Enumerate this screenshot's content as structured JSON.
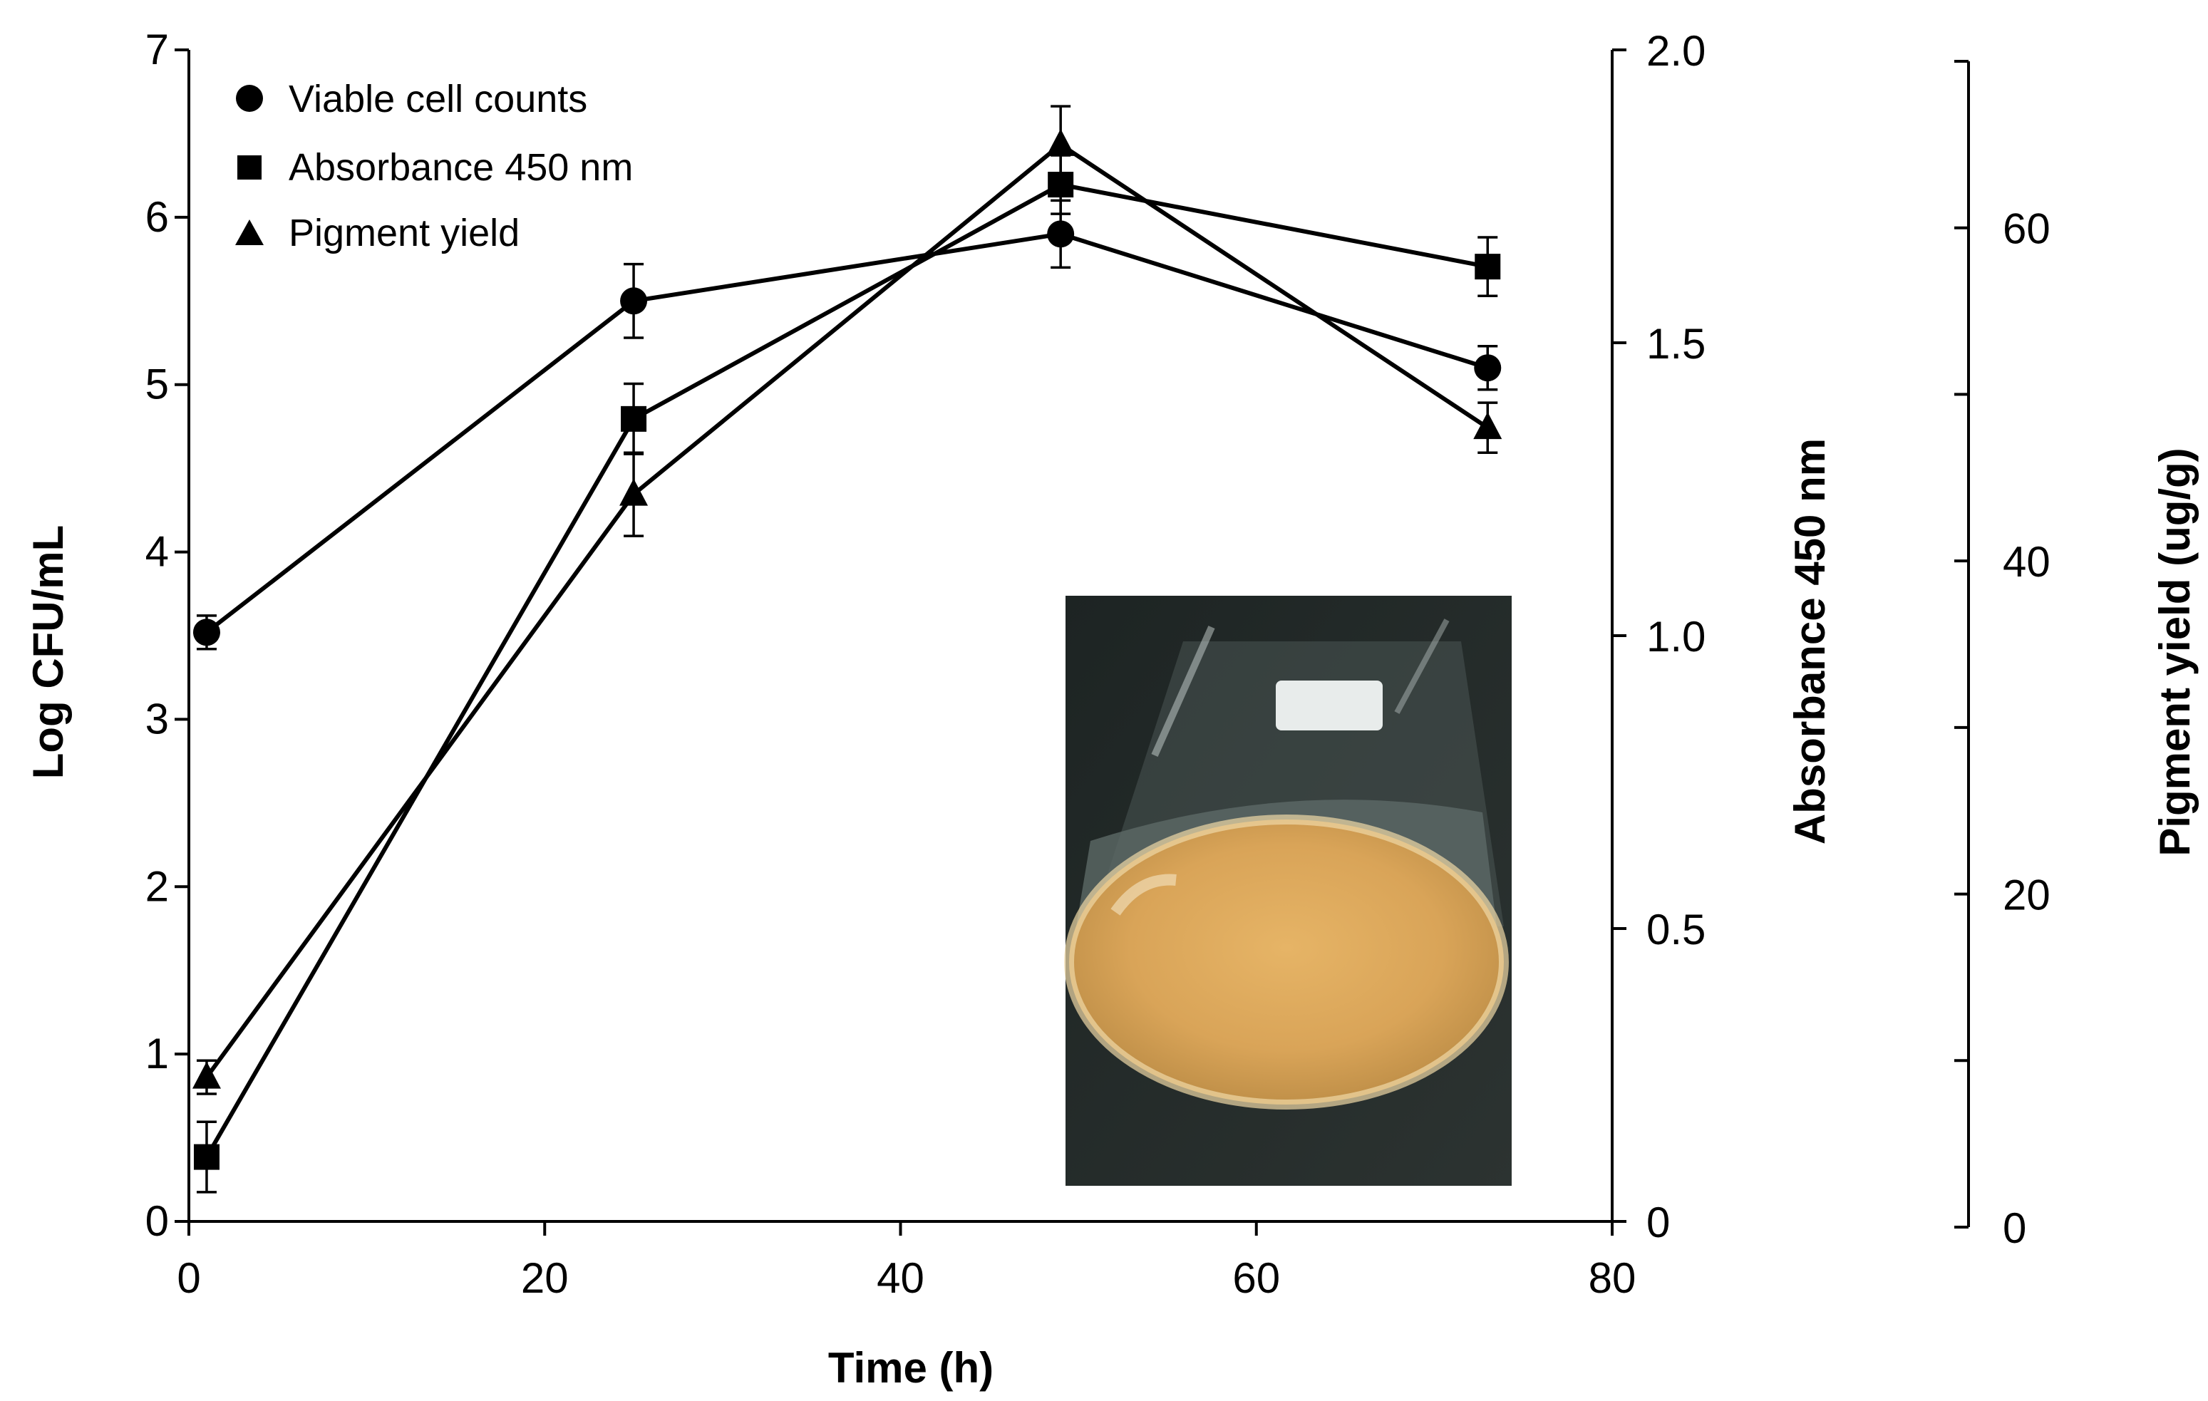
{
  "chart_data": {
    "type": "line",
    "title": "",
    "xlabel": "Time (h)",
    "ylabel": "Log CFU/mL",
    "y2label": "Absorbance 450 nm",
    "y3label": "Pigment yield (ug/g)",
    "xlim": [
      0,
      80
    ],
    "ylim": [
      0,
      7
    ],
    "y2lim": [
      0,
      2.0
    ],
    "y3lim": [
      0,
      70
    ],
    "x_ticks": [
      "0",
      "20",
      "40",
      "60",
      "80"
    ],
    "y_ticks": [
      "0",
      "1",
      "2",
      "3",
      "4",
      "5",
      "6",
      "7"
    ],
    "y2_ticks": [
      "0",
      "0.5",
      "1.0",
      "1.5",
      "2.0"
    ],
    "y3_ticks": [
      "0",
      "20",
      "40",
      "60"
    ],
    "grid": false,
    "legend_position": "top-left",
    "series": [
      {
        "name": "Viable cell counts",
        "marker": "circle",
        "axis": "y",
        "x": [
          1,
          25,
          49,
          73
        ],
        "values": [
          3.52,
          5.5,
          5.9,
          5.1
        ],
        "errors": [
          0.1,
          0.22,
          0.2,
          0.13
        ]
      },
      {
        "name": "Absorbance 450 nm",
        "marker": "square",
        "axis": "y2",
        "x": [
          1,
          25,
          49,
          73
        ],
        "values": [
          0.11,
          1.37,
          1.77,
          1.63
        ],
        "errors": [
          0.06,
          0.06,
          0.05,
          0.05
        ]
      },
      {
        "name": "Pigment yield",
        "marker": "triangle",
        "axis": "y3",
        "x": [
          1,
          25,
          49,
          73
        ],
        "values": [
          9,
          44,
          65,
          48
        ],
        "errors": [
          1,
          2.5,
          2.3,
          1.5
        ]
      }
    ],
    "inset": "photograph of a flask containing yellow-orange pigmented culture"
  }
}
